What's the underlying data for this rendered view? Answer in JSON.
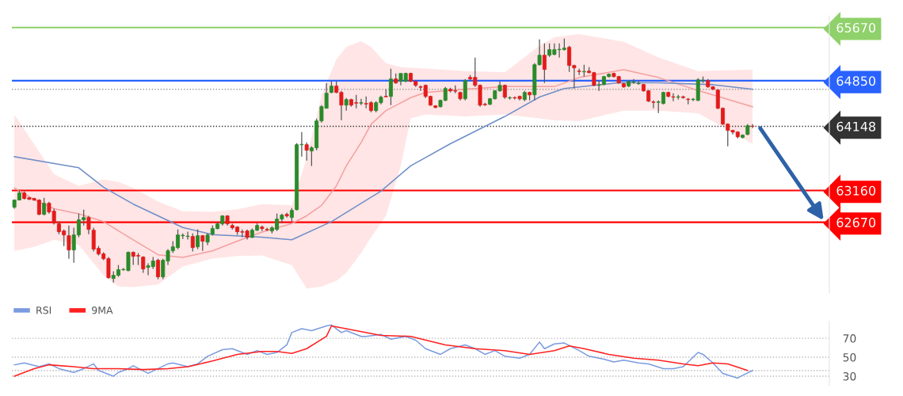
{
  "chart_data": [
    {
      "type": "candlestick",
      "tick_labels": "y",
      "ylim": [
        61580,
        65850
      ],
      "yticks": [
        65670,
        64850,
        64148,
        63160,
        62670
      ],
      "categories": [
        null,
        null,
        null,
        null,
        null,
        null,
        null,
        null,
        null,
        null,
        null,
        null,
        null,
        null,
        null,
        null,
        null,
        null,
        null,
        null,
        null,
        null,
        null,
        null,
        null,
        null,
        null,
        null,
        null,
        null,
        null,
        null,
        null,
        null,
        null,
        null,
        null,
        null,
        null,
        null,
        null,
        null,
        null,
        null,
        null,
        null,
        null,
        null,
        null,
        null,
        null,
        null,
        null,
        null,
        null,
        null,
        null,
        null,
        null,
        null,
        null,
        null,
        null,
        null,
        null,
        null,
        null,
        null,
        null,
        null,
        null,
        null,
        null,
        null,
        null,
        null,
        null,
        null,
        null,
        null,
        null,
        null,
        null,
        null,
        null,
        null,
        null,
        null,
        null,
        null,
        null,
        null,
        null,
        null,
        null,
        null,
        null,
        null,
        null,
        null,
        null,
        null,
        null,
        null,
        null,
        null,
        null,
        null,
        null,
        null,
        null,
        null,
        null,
        null,
        null,
        null,
        null,
        null,
        null,
        null,
        null,
        null,
        null,
        null,
        null,
        null,
        null,
        null,
        null,
        null,
        null,
        null,
        null,
        null,
        null,
        null,
        null,
        null,
        null,
        null,
        null,
        null,
        null,
        null,
        null,
        null,
        null,
        null,
        null,
        null,
        null,
        null,
        null,
        null,
        null,
        null,
        null,
        null,
        null,
        null,
        null,
        null,
        null,
        null,
        null
      ],
      "ohlc": [
        [
          62902,
          63024,
          62878,
          63012
        ],
        [
          63012,
          63170,
          63012,
          63121
        ],
        [
          63121,
          63146,
          63024,
          63036
        ],
        [
          63048,
          63060,
          63012,
          63024
        ],
        [
          63036,
          63048,
          63000,
          63012
        ],
        [
          63012,
          63024,
          62780,
          62792
        ],
        [
          62792,
          63048,
          62780,
          62963
        ],
        [
          62963,
          62987,
          62804,
          62829
        ],
        [
          62841,
          62878,
          62634,
          62658
        ],
        [
          62646,
          62682,
          62487,
          62524
        ],
        [
          62536,
          62560,
          62304,
          62475
        ],
        [
          62463,
          62621,
          62109,
          62243
        ],
        [
          62243,
          62585,
          62048,
          62475
        ],
        [
          62475,
          62804,
          62439,
          62707
        ],
        [
          62707,
          62865,
          62621,
          62743
        ],
        [
          62743,
          62768,
          62487,
          62560
        ],
        [
          62548,
          62585,
          62219,
          62256
        ],
        [
          62268,
          62304,
          62158,
          62182
        ],
        [
          62182,
          62207,
          62085,
          62109
        ],
        [
          62109,
          62134,
          61804,
          61817
        ],
        [
          61804,
          61914,
          61743,
          61853
        ],
        [
          61853,
          62012,
          61829,
          61939
        ],
        [
          61939,
          61963,
          61926,
          61945
        ],
        [
          61926,
          62219,
          61914,
          62207
        ],
        [
          62207,
          62219,
          62012,
          62146
        ],
        [
          62158,
          62195,
          62012,
          62150
        ],
        [
          62134,
          62146,
          61890,
          61951
        ],
        [
          61975,
          62036,
          61853,
          61999
        ],
        [
          61987,
          62134,
          61951,
          62073
        ],
        [
          62085,
          62109,
          61792,
          61829
        ],
        [
          61829,
          62109,
          61792,
          62085
        ],
        [
          62073,
          62256,
          62012,
          62231
        ],
        [
          62231,
          62378,
          62195,
          62292
        ],
        [
          62280,
          62560,
          62256,
          62475
        ],
        [
          62463,
          62499,
          62414,
          62470
        ],
        [
          62451,
          62524,
          62402,
          62457
        ],
        [
          62451,
          62499,
          62219,
          62280
        ],
        [
          62292,
          62560,
          62256,
          62463
        ],
        [
          62463,
          62475,
          62231,
          62378
        ],
        [
          62365,
          62499,
          62317,
          62475
        ],
        [
          62487,
          62621,
          62463,
          62573
        ],
        [
          62573,
          62670,
          62560,
          62646
        ],
        [
          62646,
          62780,
          62621,
          62768
        ],
        [
          62768,
          62780,
          62621,
          62646
        ],
        [
          62621,
          62646,
          62560,
          62585
        ],
        [
          62597,
          62609,
          62475,
          62524
        ],
        [
          62524,
          62560,
          62439,
          62518
        ],
        [
          62536,
          62560,
          62402,
          62439
        ],
        [
          62439,
          62573,
          62426,
          62548
        ],
        [
          62548,
          62658,
          62536,
          62621
        ],
        [
          62597,
          62621,
          62536,
          62573
        ],
        [
          62560,
          62585,
          62536,
          62555
        ],
        [
          62536,
          62609,
          62499,
          62585
        ],
        [
          62560,
          62804,
          62536,
          62719
        ],
        [
          62719,
          62804,
          62658,
          62780
        ],
        [
          62792,
          62817,
          62743,
          62768
        ],
        [
          62743,
          62890,
          62682,
          62853
        ],
        [
          62865,
          63890,
          62853,
          63865
        ],
        [
          63865,
          64060,
          63682,
          63870
        ],
        [
          63865,
          63902,
          63621,
          63780
        ],
        [
          63768,
          63841,
          63536,
          63817
        ],
        [
          63817,
          64268,
          63780,
          64231
        ],
        [
          64231,
          64475,
          64207,
          64451
        ],
        [
          64426,
          64817,
          64426,
          64658
        ],
        [
          64670,
          64841,
          64658,
          64768
        ],
        [
          64768,
          64841,
          64658,
          64670
        ],
        [
          64670,
          64695,
          64243,
          64475
        ],
        [
          64475,
          64585,
          64390,
          64560
        ],
        [
          64560,
          64573,
          64451,
          64475
        ],
        [
          64512,
          64633,
          64426,
          64505
        ],
        [
          64505,
          64573,
          64475,
          64512
        ],
        [
          64499,
          64609,
          64426,
          64493
        ],
        [
          64512,
          64536,
          64365,
          64390
        ],
        [
          64390,
          64536,
          64365,
          64512
        ],
        [
          64512,
          64621,
          64487,
          64597
        ],
        [
          64609,
          64719,
          64597,
          64603
        ],
        [
          64609,
          65036,
          64475,
          64878
        ],
        [
          64878,
          64963,
          64804,
          64817
        ],
        [
          64841,
          64963,
          64780,
          64963
        ],
        [
          64841,
          64975,
          64829,
          64963
        ],
        [
          64963,
          64975,
          64829,
          64841
        ],
        [
          64841,
          64853,
          64756,
          64780
        ],
        [
          64756,
          64780,
          64695,
          64750
        ],
        [
          64780,
          64792,
          64585,
          64609
        ],
        [
          64609,
          64621,
          64463,
          64475
        ],
        [
          64463,
          64475,
          64426,
          64439
        ],
        [
          64451,
          64560,
          64439,
          64548
        ],
        [
          64548,
          64756,
          64536,
          64731
        ],
        [
          64719,
          64743,
          64670,
          64695
        ],
        [
          64695,
          64780,
          64658,
          64690
        ],
        [
          64670,
          64682,
          64548,
          64573
        ],
        [
          64573,
          64878,
          64548,
          64853
        ],
        [
          64902,
          64938,
          64853,
          64878
        ],
        [
          64902,
          65207,
          64756,
          64780
        ],
        [
          64780,
          64792,
          64451,
          64475
        ],
        [
          64487,
          64512,
          64463,
          64481
        ],
        [
          64487,
          64585,
          64475,
          64573
        ],
        [
          64573,
          64707,
          64560,
          64695
        ],
        [
          64695,
          64841,
          64682,
          64780
        ],
        [
          64780,
          64792,
          64573,
          64597
        ],
        [
          64585,
          64609,
          64560,
          64590
        ],
        [
          64590,
          64609,
          64560,
          64585
        ],
        [
          64609,
          64621,
          64548,
          64573
        ],
        [
          64560,
          64695,
          64536,
          64670
        ],
        [
          64670,
          64682,
          64548,
          64633
        ],
        [
          64633,
          65121,
          64548,
          65097
        ],
        [
          65097,
          65487,
          65085,
          65243
        ],
        [
          65243,
          65426,
          64817,
          65024
        ],
        [
          65243,
          65426,
          65219,
          65329
        ],
        [
          65256,
          65426,
          65243,
          65329
        ],
        [
          65329,
          65426,
          65207,
          65335
        ],
        [
          65329,
          65500,
          65317,
          65353
        ],
        [
          65365,
          65390,
          64987,
          65085
        ],
        [
          65085,
          65097,
          64731,
          65048
        ],
        [
          64999,
          65036,
          64938,
          64993
        ],
        [
          64987,
          65097,
          64914,
          64993
        ],
        [
          64999,
          65060,
          64963,
          64975
        ],
        [
          64975,
          64987,
          64768,
          64780
        ],
        [
          64780,
          64853,
          64695,
          64786
        ],
        [
          64792,
          64926,
          64780,
          64914
        ],
        [
          64914,
          64963,
          64902,
          64951
        ],
        [
          64963,
          64975,
          64902,
          64914
        ],
        [
          64914,
          64926,
          64804,
          64817
        ],
        [
          64804,
          64817,
          64743,
          64756
        ],
        [
          64768,
          64853,
          64756,
          64841
        ],
        [
          64829,
          64878,
          64804,
          64835
        ],
        [
          64804,
          64853,
          64792,
          64810
        ],
        [
          64792,
          64804,
          64682,
          64695
        ],
        [
          64695,
          64707,
          64524,
          64536
        ],
        [
          64524,
          64548,
          64426,
          64518
        ],
        [
          64518,
          64548,
          64353,
          64524
        ],
        [
          64499,
          64682,
          64487,
          64670
        ],
        [
          64670,
          64682,
          64597,
          64609
        ],
        [
          64603,
          64658,
          64536,
          64597
        ],
        [
          64597,
          64633,
          64560,
          64603
        ],
        [
          64603,
          64621,
          64573,
          64591
        ],
        [
          64566,
          64585,
          64487,
          64560
        ],
        [
          64560,
          64585,
          64536,
          64566
        ],
        [
          64548,
          64890,
          64536,
          64865
        ],
        [
          64853,
          64914,
          64817,
          64859
        ],
        [
          64853,
          64878,
          64743,
          64756
        ],
        [
          64756,
          64768,
          64707,
          64719
        ],
        [
          64707,
          64719,
          64414,
          64426
        ],
        [
          64426,
          64439,
          64170,
          64182
        ],
        [
          64182,
          64195,
          63841,
          64085
        ],
        [
          64085,
          64097,
          64024,
          64060
        ],
        [
          64060,
          64073,
          63963,
          63987
        ],
        [
          63975,
          64024,
          63963,
          64012
        ],
        [
          64024,
          64182,
          64012,
          64158
        ],
        [
          64150,
          64182,
          64121,
          64148
        ],
        null,
        null,
        null,
        null,
        null,
        null,
        null,
        null,
        null,
        null,
        null,
        null,
        null,
        null,
        null
      ],
      "series": [
        {
          "type": "line",
          "color": "#f4a0a0",
          "values": [
            63200,
            null,
            null,
            null,
            63020,
            null,
            null,
            null,
            62880,
            null,
            null,
            null,
            null,
            62800,
            null,
            null,
            null,
            null,
            62680,
            null,
            null,
            62540,
            null,
            null,
            62400,
            null,
            null,
            null,
            null,
            62170,
            null,
            null,
            null,
            null,
            62130,
            null,
            null,
            null,
            null,
            null,
            62230,
            null,
            null,
            null,
            null,
            62380,
            null,
            null,
            null,
            null,
            62520,
            null,
            null,
            null,
            null,
            null,
            62650,
            null,
            null,
            62770,
            null,
            null,
            62930,
            null,
            null,
            63230,
            null,
            63540,
            null,
            null,
            63900,
            null,
            64180,
            null,
            null,
            64390,
            null,
            null,
            64510,
            null,
            64590,
            null,
            null,
            64670,
            null,
            null,
            null,
            null,
            null,
            null,
            null,
            64720,
            null,
            null,
            null,
            null,
            null,
            null,
            null,
            64760,
            null,
            null,
            null,
            null,
            null,
            null,
            64760,
            null,
            null,
            64760,
            null,
            null,
            null,
            null,
            64900,
            null,
            null,
            null,
            null,
            null,
            null,
            null,
            null,
            65020,
            null,
            null,
            null,
            null,
            null,
            null,
            64900,
            null,
            null,
            null,
            null,
            null,
            null,
            null,
            64700,
            null,
            null,
            null,
            null,
            null,
            null,
            null,
            null,
            null,
            null,
            64450,
            null,
            null,
            null,
            null,
            null,
            null,
            null,
            null,
            null,
            null,
            null,
            null,
            null,
            null,
            null
          ],
          "upper": [
            64330,
            null,
            null,
            null,
            63870,
            null,
            null,
            null,
            63410,
            null,
            null,
            null,
            null,
            63230,
            null,
            null,
            null,
            null,
            63330,
            null,
            null,
            63290,
            null,
            null,
            63200,
            null,
            null,
            null,
            null,
            62990,
            null,
            null,
            null,
            null,
            62840,
            null,
            null,
            null,
            null,
            null,
            62830,
            null,
            null,
            null,
            null,
            62870,
            null,
            null,
            null,
            null,
            62950,
            null,
            null,
            null,
            null,
            null,
            62930,
            null,
            null,
            63660,
            null,
            null,
            64630,
            null,
            null,
            65180,
            null,
            65370,
            null,
            null,
            65460,
            null,
            65370,
            null,
            null,
            65120,
            null,
            null,
            65060,
            null,
            65050,
            null,
            null,
            65040,
            null,
            null,
            null,
            null,
            null,
            null,
            null,
            65000,
            null,
            null,
            null,
            null,
            null,
            null,
            null,
            64980,
            null,
            null,
            null,
            null,
            null,
            null,
            65390,
            null,
            null,
            65520,
            null,
            null,
            null,
            null,
            65570,
            null,
            null,
            null,
            null,
            null,
            null,
            null,
            null,
            65450,
            null,
            null,
            null,
            null,
            null,
            null,
            65210,
            null,
            null,
            null,
            null,
            null,
            null,
            null,
            65000,
            null,
            null,
            null,
            null,
            null,
            null,
            null,
            null,
            null,
            null,
            65020,
            null,
            null,
            null,
            null,
            null,
            null,
            null,
            null,
            null,
            null,
            null,
            null,
            null,
            null,
            null
          ],
          "lower": [
            62230,
            null,
            null,
            null,
            62290,
            null,
            null,
            null,
            62400,
            null,
            null,
            null,
            null,
            62320,
            null,
            null,
            null,
            null,
            61850,
            null,
            null,
            61680,
            null,
            null,
            61670,
            null,
            null,
            null,
            null,
            61710,
            null,
            null,
            null,
            null,
            61990,
            null,
            null,
            null,
            null,
            null,
            62110,
            null,
            null,
            null,
            null,
            62150,
            null,
            null,
            null,
            null,
            62160,
            null,
            null,
            null,
            null,
            null,
            62010,
            null,
            null,
            61650,
            null,
            null,
            61680,
            null,
            null,
            61770,
            null,
            61890,
            null,
            null,
            62200,
            null,
            62440,
            null,
            null,
            62770,
            null,
            null,
            63540,
            null,
            64270,
            null,
            null,
            64330,
            null,
            null,
            null,
            null,
            null,
            null,
            null,
            64300,
            null,
            null,
            null,
            null,
            null,
            null,
            null,
            64330,
            null,
            null,
            null,
            null,
            null,
            null,
            64270,
            null,
            null,
            64240,
            null,
            null,
            null,
            null,
            64230,
            null,
            null,
            null,
            null,
            null,
            null,
            null,
            null,
            64390,
            null,
            null,
            null,
            null,
            null,
            null,
            64390,
            null,
            null,
            null,
            null,
            null,
            null,
            null,
            64350,
            null,
            null,
            null,
            null,
            null,
            null,
            null,
            null,
            null,
            null,
            63880,
            null,
            null,
            null,
            null,
            null,
            null,
            null,
            null,
            null,
            null,
            null,
            null,
            null,
            null,
            null
          ]
        },
        {
          "type": "line",
          "color": "#6f8fc8",
          "values": [
            63680,
            null,
            null,
            null,
            null,
            null,
            null,
            null,
            null,
            null,
            null,
            null,
            null,
            63510,
            null,
            null,
            null,
            null,
            63210,
            null,
            null,
            null,
            null,
            null,
            62950,
            null,
            null,
            null,
            null,
            62770,
            null,
            null,
            null,
            null,
            62590,
            null,
            null,
            null,
            null,
            null,
            62480,
            null,
            null,
            null,
            null,
            null,
            null,
            null,
            null,
            null,
            62440,
            null,
            null,
            null,
            null,
            null,
            62400,
            null,
            null,
            null,
            null,
            null,
            null,
            null,
            62680,
            null,
            null,
            null,
            null,
            null,
            null,
            null,
            null,
            null,
            63150,
            null,
            null,
            null,
            null,
            null,
            63540,
            null,
            null,
            null,
            null,
            null,
            null,
            null,
            63880,
            null,
            null,
            null,
            null,
            null,
            null,
            null,
            null,
            null,
            null,
            64300,
            null,
            null,
            null,
            null,
            null,
            null,
            64600,
            null,
            null,
            null,
            null,
            64730,
            null,
            null,
            null,
            null,
            null,
            null,
            null,
            null,
            null,
            null,
            64820,
            null,
            null,
            null,
            null,
            null,
            null,
            null,
            64820,
            null,
            null,
            null,
            null,
            null,
            null,
            null,
            null,
            null,
            null,
            64790,
            null,
            null,
            null,
            null,
            null,
            null,
            null,
            64720,
            null,
            null,
            null,
            null,
            null,
            null,
            null,
            null,
            null,
            null,
            null,
            null,
            null,
            null,
            null
          ]
        }
      ],
      "ref_lines": [
        {
          "axis": "y",
          "value": 65670,
          "color": "#8fd16a",
          "line_style": "solid"
        },
        {
          "axis": "y",
          "value": 64850,
          "color": "#2962ff",
          "line_style": "solid"
        },
        {
          "axis": "y",
          "value": 64719,
          "color": "#999999",
          "line_style": "dotted"
        },
        {
          "axis": "y",
          "value": 64148,
          "color": "#333333",
          "line_style": "dotted"
        },
        {
          "axis": "y",
          "value": 63160,
          "color": "#ff0000",
          "line_style": "solid"
        },
        {
          "axis": "y",
          "value": 62670,
          "color": "#ff0000",
          "line_style": "solid"
        }
      ]
    },
    {
      "type": "line",
      "tick_labels": "y",
      "ylim": [
        20,
        88
      ],
      "yticks": [
        70,
        50,
        30
      ],
      "grid": "y",
      "legend": "top left",
      "categories": [
        null,
        null,
        null,
        null,
        null,
        null,
        null,
        null,
        null,
        null,
        null,
        null,
        null,
        null,
        null,
        null,
        null,
        null,
        null,
        null,
        null,
        null,
        null,
        null,
        null,
        null,
        null,
        null,
        null,
        null,
        null,
        null,
        null,
        null,
        null,
        null,
        null,
        null,
        null,
        null,
        null,
        null,
        null,
        null,
        null,
        null,
        null,
        null,
        null,
        null,
        null,
        null,
        null,
        null,
        null,
        null,
        null,
        null,
        null,
        null,
        null,
        null,
        null,
        null,
        null,
        null,
        null,
        null,
        null,
        null,
        null,
        null,
        null,
        null,
        null,
        null,
        null,
        null,
        null,
        null,
        null,
        null,
        null,
        null,
        null,
        null,
        null,
        null,
        null,
        null,
        null,
        null,
        null,
        null,
        null,
        null,
        null,
        null,
        null,
        null,
        null,
        null,
        null,
        null,
        null,
        null,
        null,
        null,
        null,
        null,
        null,
        null,
        null,
        null,
        null,
        null,
        null,
        null,
        null,
        null,
        null,
        null,
        null,
        null,
        null,
        null,
        null,
        null,
        null,
        null,
        null,
        null,
        null,
        null,
        null,
        null,
        null,
        null,
        null,
        null,
        null,
        null,
        null,
        null,
        null,
        null,
        null,
        null,
        null,
        null,
        null,
        null,
        null,
        null,
        null,
        null,
        null,
        null,
        null,
        null,
        null,
        null,
        null,
        null,
        null
      ],
      "series": [
        {
          "name": "RSI",
          "color": "#7b9be0",
          "values": [
            42,
            null,
            44,
            null,
            null,
            40,
            null,
            43,
            null,
            38,
            null,
            null,
            34,
            null,
            38,
            null,
            43,
            36,
            null,
            null,
            30,
            34,
            null,
            38,
            41,
            null,
            null,
            33,
            null,
            38,
            null,
            43,
            44,
            null,
            null,
            40,
            null,
            43,
            null,
            51,
            null,
            null,
            58,
            null,
            59,
            null,
            null,
            53,
            null,
            57,
            null,
            53,
            null,
            55,
            null,
            63,
            76,
            null,
            80,
            null,
            78,
            null,
            null,
            83,
            84,
            null,
            76,
            78,
            null,
            null,
            72,
            72,
            null,
            null,
            74,
            null,
            69,
            null,
            null,
            72,
            null,
            68,
            null,
            59,
            null,
            null,
            53,
            null,
            59,
            null,
            null,
            63,
            null,
            59,
            null,
            53,
            null,
            57,
            null,
            51,
            null,
            null,
            49,
            null,
            53,
            null,
            66,
            59,
            null,
            64,
            null,
            65,
            null,
            null,
            57,
            null,
            51,
            null,
            null,
            48,
            null,
            45,
            null,
            47,
            null,
            null,
            44,
            null,
            43,
            null,
            null,
            38,
            null,
            38,
            null,
            40,
            null,
            null,
            55,
            53,
            null,
            44,
            null,
            33,
            null,
            null,
            28,
            31,
            null,
            36,
            null,
            null,
            null,
            null,
            null,
            null,
            null,
            null,
            null,
            null,
            null,
            null,
            null,
            null,
            null
          ]
        },
        {
          "name": "9MA",
          "color": "#ff2020",
          "values": [
            30,
            null,
            null,
            null,
            38,
            null,
            null,
            42,
            null,
            null,
            null,
            null,
            40,
            null,
            null,
            null,
            38,
            null,
            null,
            null,
            null,
            38,
            null,
            null,
            null,
            null,
            37,
            null,
            null,
            null,
            null,
            38,
            null,
            null,
            null,
            40,
            null,
            null,
            null,
            null,
            46,
            null,
            null,
            null,
            null,
            53,
            null,
            null,
            null,
            null,
            56,
            null,
            null,
            56,
            null,
            null,
            54,
            null,
            null,
            59,
            null,
            null,
            null,
            72,
            83,
            null,
            null,
            null,
            null,
            78,
            null,
            null,
            null,
            null,
            73,
            null,
            null,
            null,
            null,
            null,
            72,
            null,
            null,
            null,
            null,
            null,
            null,
            63,
            null,
            null,
            null,
            null,
            null,
            59,
            null,
            null,
            null,
            null,
            null,
            57,
            null,
            null,
            null,
            null,
            53,
            null,
            null,
            null,
            null,
            57,
            null,
            null,
            62,
            null,
            null,
            59,
            null,
            null,
            null,
            null,
            53,
            null,
            null,
            null,
            null,
            49,
            null,
            null,
            null,
            null,
            47,
            null,
            null,
            null,
            null,
            43,
            null,
            null,
            41,
            null,
            null,
            44,
            null,
            null,
            43,
            null,
            null,
            null,
            36,
            null,
            null,
            null,
            null,
            null,
            null,
            null,
            null,
            null,
            null,
            null,
            null,
            null,
            null,
            null,
            null
          ]
        }
      ],
      "ref_lines": [
        {
          "axis": "y",
          "value": 36,
          "color": "#aaaaaa",
          "line_style": "dotted"
        }
      ]
    }
  ]
}
